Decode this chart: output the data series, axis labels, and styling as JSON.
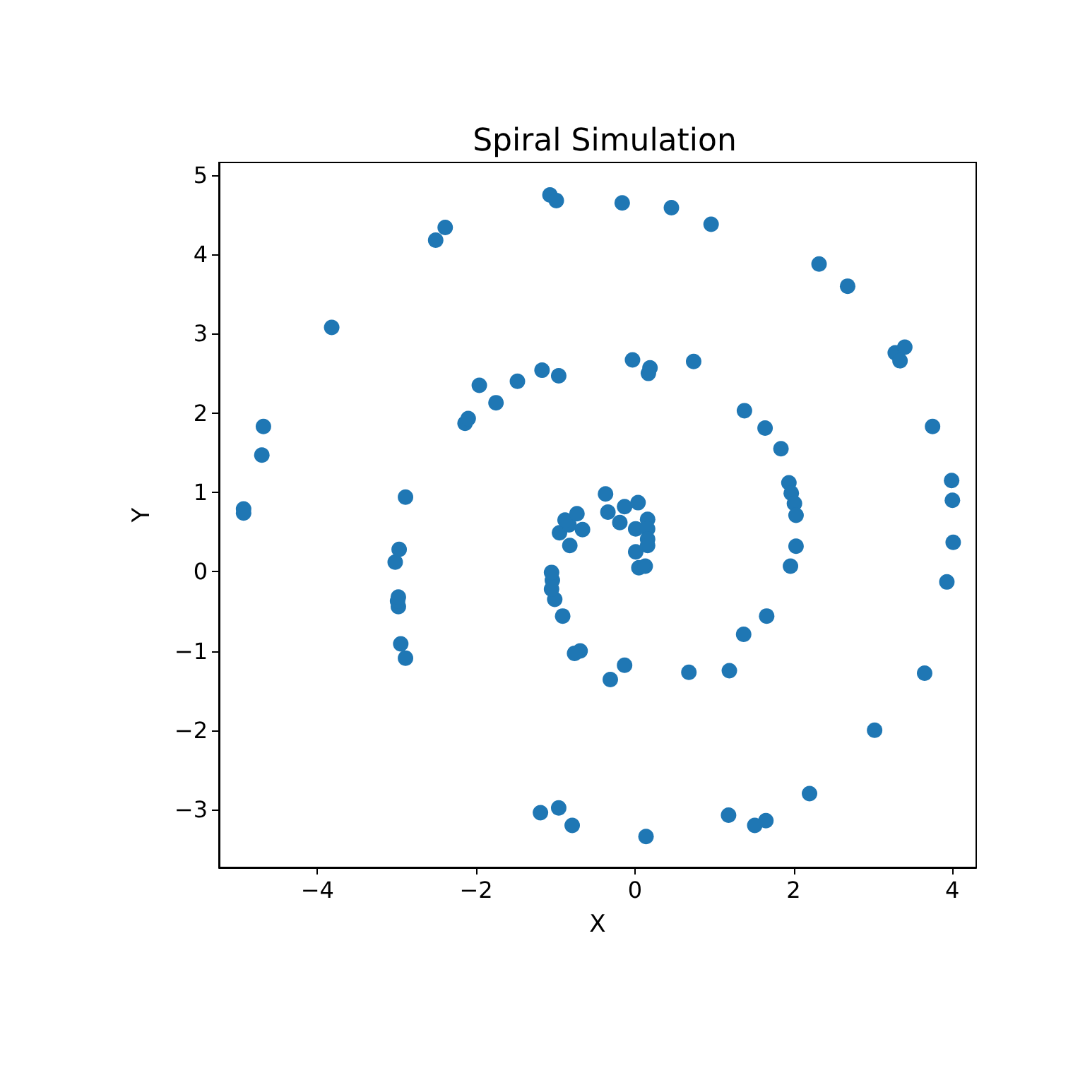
{
  "chart_data": {
    "type": "scatter",
    "title": "Spiral Simulation",
    "xlabel": "X",
    "ylabel": "Y",
    "x": [
      -1.07,
      -0.99,
      -2.39,
      -2.51,
      -3.82,
      -4.68,
      -4.7,
      -4.93,
      -4.93,
      -2.89,
      -2.14,
      -2.1,
      -1.96,
      -1.75,
      -1.48,
      -1.17,
      -0.96,
      -0.16,
      0.46,
      0.96,
      2.32,
      2.68,
      3.28,
      3.4,
      3.34,
      3.75,
      3.99,
      4.0,
      4.01,
      3.93,
      3.65,
      3.02,
      2.2,
      1.65,
      1.51,
      1.18,
      0.14,
      -0.79,
      -0.96,
      -1.19,
      -2.89,
      -2.95,
      -2.98,
      -2.99,
      -2.98,
      -3.02,
      -2.97,
      -0.03,
      0.19,
      0.17,
      0.74,
      1.38,
      1.64,
      1.84,
      1.94,
      1.97,
      2.01,
      2.03,
      2.03,
      1.96,
      1.66,
      1.37,
      1.19,
      0.68,
      -0.13,
      -0.31,
      -0.69,
      -0.76,
      -0.91,
      -1.01,
      -1.05,
      -1.04,
      -1.05,
      -0.82,
      -0.95,
      -0.66,
      -0.83,
      -0.88,
      -0.73,
      -0.37,
      -0.34,
      -0.13,
      0.04,
      -0.19,
      0.16,
      0.01,
      0.16,
      0.16,
      0.16,
      0.01,
      0.05,
      0.13
    ],
    "values": [
      4.75,
      4.68,
      4.34,
      4.18,
      3.08,
      1.83,
      1.47,
      0.79,
      0.74,
      0.94,
      1.87,
      1.93,
      2.35,
      2.13,
      2.4,
      2.54,
      2.47,
      4.65,
      4.59,
      4.38,
      3.88,
      3.6,
      2.76,
      2.83,
      2.66,
      1.83,
      1.15,
      0.9,
      0.37,
      -0.13,
      -1.28,
      -2.0,
      -2.8,
      -3.14,
      -3.2,
      -3.07,
      -3.34,
      -3.2,
      -2.98,
      -3.04,
      -1.09,
      -0.91,
      -0.44,
      -0.37,
      -0.32,
      0.12,
      0.28,
      2.67,
      2.57,
      2.5,
      2.65,
      2.03,
      1.81,
      1.55,
      1.12,
      0.99,
      0.86,
      0.71,
      0.32,
      0.07,
      -0.56,
      -0.79,
      -1.25,
      -1.27,
      -1.18,
      -1.36,
      -1.0,
      -1.03,
      -0.56,
      -0.35,
      -0.22,
      -0.11,
      -0.01,
      0.33,
      0.49,
      0.53,
      0.59,
      0.65,
      0.73,
      0.98,
      0.75,
      0.82,
      0.87,
      0.62,
      0.66,
      0.54,
      0.54,
      0.41,
      0.33,
      0.25,
      0.05,
      0.07
    ],
    "color": "#1f77b4",
    "marker": "circle",
    "xlim": [
      -5.24,
      4.3
    ],
    "ylim": [
      -3.73,
      5.16
    ],
    "xticks": [
      -4,
      -2,
      0,
      2,
      4
    ],
    "yticks": [
      -3,
      -2,
      -1,
      0,
      1,
      2,
      3,
      4,
      5
    ]
  }
}
